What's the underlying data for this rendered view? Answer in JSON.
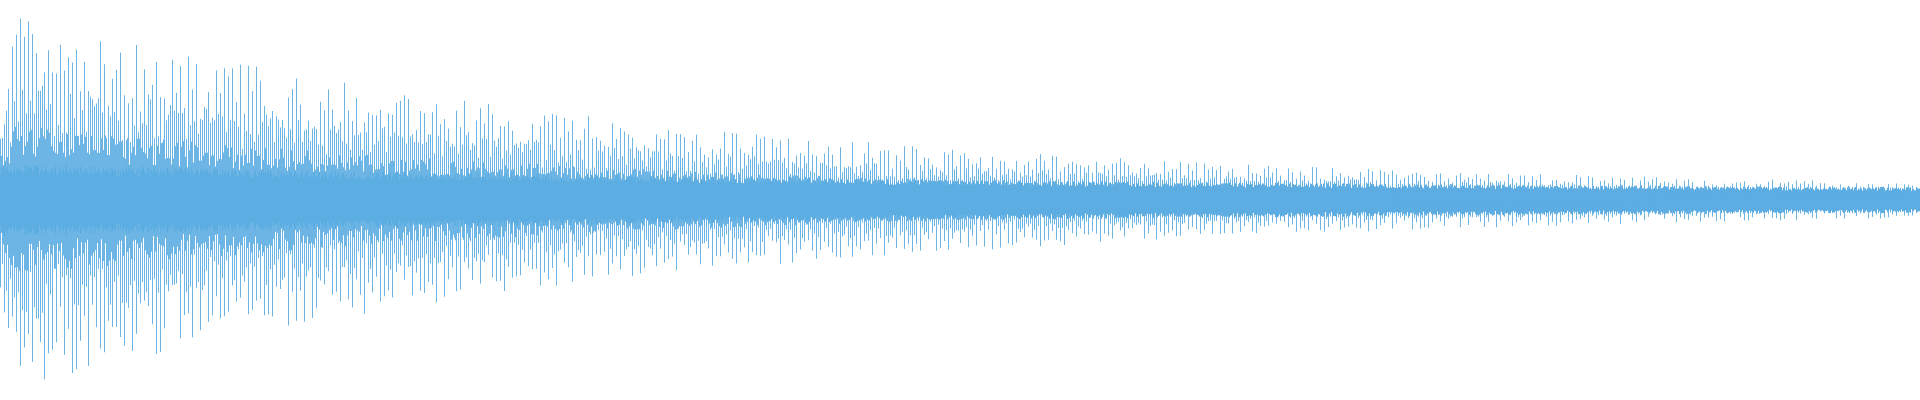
{
  "waveform": {
    "color": "#5dade2",
    "background": "#ffffff",
    "envelope": "decaying"
  }
}
